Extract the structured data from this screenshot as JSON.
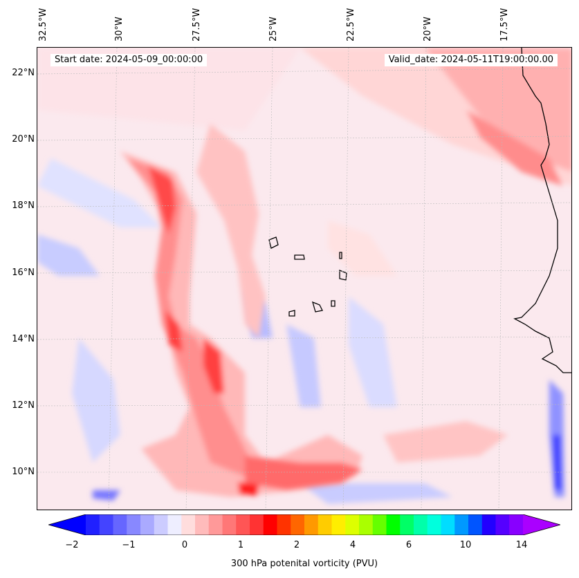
{
  "map": {
    "start_label": "Start date: 2024-05-09_00:00:00",
    "valid_label": "Valid_date: 2024-05-11T19:00:00.00",
    "lon_labels": [
      "32.5°W",
      "30°W",
      "27.5°W",
      "25°W",
      "22.5°W",
      "20°W",
      "17.5°W"
    ],
    "lat_labels": [
      "22°N",
      "20°N",
      "18°N",
      "16°N",
      "14°N",
      "12°N",
      "10°N"
    ]
  },
  "colorbar": {
    "label": "300 hPa potenital vorticity (PVU)",
    "ticks": [
      "−2",
      "−1",
      "0",
      "1",
      "2",
      "4",
      "6",
      "10",
      "14"
    ],
    "colors": [
      "#0000ff",
      "#2020ff",
      "#4444ff",
      "#6666ff",
      "#8888ff",
      "#aaaaff",
      "#ccccff",
      "#eeeeff",
      "#ffdddd",
      "#ffbbbb",
      "#ff9999",
      "#ff7777",
      "#ff5555",
      "#ff3333",
      "#ff0000",
      "#ff3300",
      "#ff6600",
      "#ff9900",
      "#ffcc00",
      "#ffee00",
      "#ddff00",
      "#aaff00",
      "#66ff00",
      "#00ff00",
      "#00ff66",
      "#00ffaa",
      "#00ffdd",
      "#00ddff",
      "#0099ff",
      "#0055ff",
      "#2200ff",
      "#5500ff",
      "#8800ff",
      "#aa00ff"
    ]
  }
}
